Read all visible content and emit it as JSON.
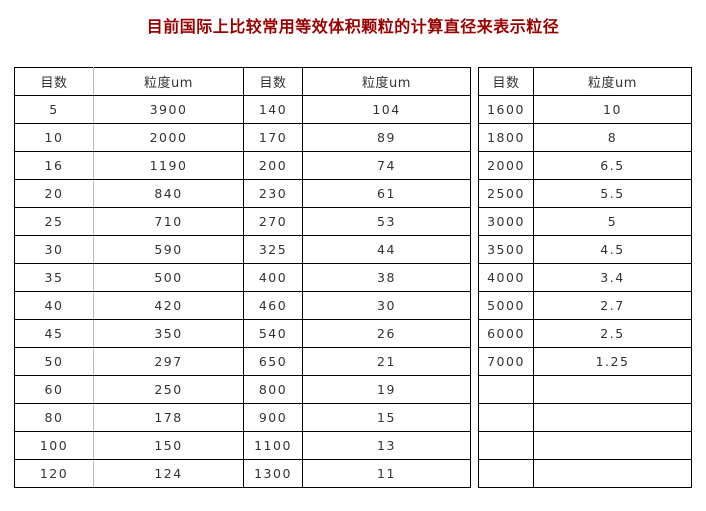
{
  "title": "目前国际上比较常用等效体积颗粒的计算直径来表示粒径",
  "colors": {
    "title_red": "#990000",
    "border_dark": "#000000",
    "border_light": "#bdbdbd",
    "text": "#333333"
  },
  "left_table": {
    "headers": [
      "目数",
      "粒度um",
      "目数",
      "粒度um"
    ],
    "rows": [
      [
        "5",
        "3900",
        "140",
        "104"
      ],
      [
        "10",
        "2000",
        "170",
        "89"
      ],
      [
        "16",
        "1190",
        "200",
        "74"
      ],
      [
        "20",
        "840",
        "230",
        "61"
      ],
      [
        "25",
        "710",
        "270",
        "53"
      ],
      [
        "30",
        "590",
        "325",
        "44"
      ],
      [
        "35",
        "500",
        "400",
        "38"
      ],
      [
        "40",
        "420",
        "460",
        "30"
      ],
      [
        "45",
        "350",
        "540",
        "26"
      ],
      [
        "50",
        "297",
        "650",
        "21"
      ],
      [
        "60",
        "250",
        "800",
        "19"
      ],
      [
        "80",
        "178",
        "900",
        "15"
      ],
      [
        "100",
        "150",
        "1100",
        "13"
      ],
      [
        "120",
        "124",
        "1300",
        "11"
      ]
    ]
  },
  "right_table": {
    "headers": [
      "目数",
      "粒度um"
    ],
    "rows": [
      [
        "1600",
        "10"
      ],
      [
        "1800",
        "8"
      ],
      [
        "2000",
        "6.5"
      ],
      [
        "2500",
        "5.5"
      ],
      [
        "3000",
        "5"
      ],
      [
        "3500",
        "4.5"
      ],
      [
        "4000",
        "3.4"
      ],
      [
        "5000",
        "2.7"
      ],
      [
        "6000",
        "2.5"
      ],
      [
        "7000",
        "1.25"
      ],
      [
        "",
        ""
      ],
      [
        "",
        ""
      ],
      [
        "",
        ""
      ],
      [
        "",
        ""
      ]
    ]
  }
}
